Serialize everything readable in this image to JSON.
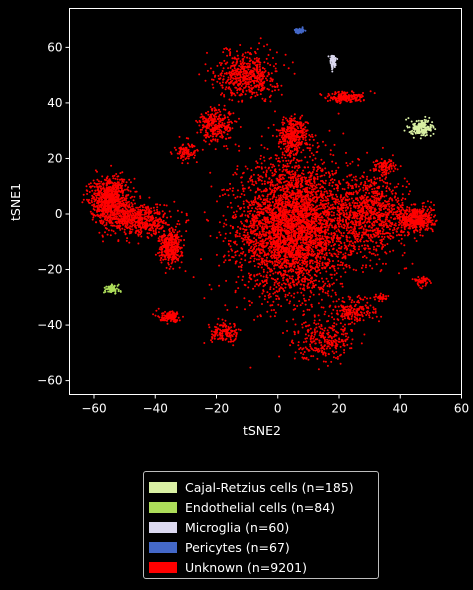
{
  "chart_data": {
    "type": "scatter",
    "xlabel": "tSNE2",
    "ylabel": "tSNE1",
    "xlim": [
      -68,
      60
    ],
    "ylim": [
      -65,
      74
    ],
    "xticks": [
      -60,
      -40,
      -20,
      0,
      20,
      40,
      60
    ],
    "yticks": [
      -60,
      -40,
      -20,
      0,
      20,
      40,
      60
    ],
    "grid": false,
    "legend_position": "below",
    "series": [
      {
        "name": "Cajal-Retzius cells (n=185)",
        "color": "#d9f0a3",
        "count": 185,
        "clusters": [
          {
            "center": [
              47,
              31
            ],
            "spread": [
              3,
              2.5
            ]
          }
        ]
      },
      {
        "name": "Endothelial cells (n=84)",
        "color": "#addd5a",
        "count": 84,
        "clusters": [
          {
            "center": [
              -54,
              -27
            ],
            "spread": [
              1.8,
              1.2
            ]
          }
        ]
      },
      {
        "name": "Microglia (n=60)",
        "color": "#dcd9f0",
        "count": 60,
        "clusters": [
          {
            "center": [
              18,
              55
            ],
            "spread": [
              0.8,
              2
            ]
          }
        ]
      },
      {
        "name": "Pericytes (n=67)",
        "color": "#4468c8",
        "count": 67,
        "clusters": [
          {
            "center": [
              7,
              66
            ],
            "spread": [
              1.3,
              0.8
            ]
          }
        ]
      },
      {
        "name": "Unknown (n=9201)",
        "color": "#ff0000",
        "count": 9201,
        "clusters": [
          {
            "center": [
              5,
              -5
            ],
            "spread": [
              15,
              20
            ],
            "weight": 40
          },
          {
            "center": [
              30,
              0
            ],
            "spread": [
              10,
              12
            ],
            "weight": 10
          },
          {
            "center": [
              45,
              -2
            ],
            "spread": [
              5,
              4
            ],
            "weight": 5
          },
          {
            "center": [
              -55,
              5
            ],
            "spread": [
              5,
              7
            ],
            "weight": 9
          },
          {
            "center": [
              -45,
              -2
            ],
            "spread": [
              8,
              5
            ],
            "weight": 6
          },
          {
            "center": [
              -35,
              -12
            ],
            "spread": [
              3,
              5
            ],
            "weight": 4
          },
          {
            "center": [
              -10,
              50
            ],
            "spread": [
              8,
              7
            ],
            "weight": 6
          },
          {
            "center": [
              -20,
              32
            ],
            "spread": [
              5,
              5
            ],
            "weight": 3
          },
          {
            "center": [
              5,
              28
            ],
            "spread": [
              4,
              6
            ],
            "weight": 4
          },
          {
            "center": [
              22,
              42
            ],
            "spread": [
              5,
              1.5
            ],
            "weight": 2
          },
          {
            "center": [
              -30,
              22
            ],
            "spread": [
              3,
              2.5
            ],
            "weight": 1
          },
          {
            "center": [
              -35,
              -37
            ],
            "spread": [
              3,
              1.5
            ],
            "weight": 1.5
          },
          {
            "center": [
              -17,
              -43
            ],
            "spread": [
              4,
              3
            ],
            "weight": 1.5
          },
          {
            "center": [
              15,
              -45
            ],
            "spread": [
              8,
              6
            ],
            "weight": 3
          },
          {
            "center": [
              25,
              -35
            ],
            "spread": [
              6,
              4
            ],
            "weight": 2
          },
          {
            "center": [
              35,
              17
            ],
            "spread": [
              3,
              2
            ],
            "weight": 1
          },
          {
            "center": [
              47,
              -24
            ],
            "spread": [
              2,
              1.5
            ],
            "weight": 0.6
          },
          {
            "center": [
              34,
              -30
            ],
            "spread": [
              1.5,
              1
            ],
            "weight": 0.4
          }
        ]
      }
    ]
  }
}
